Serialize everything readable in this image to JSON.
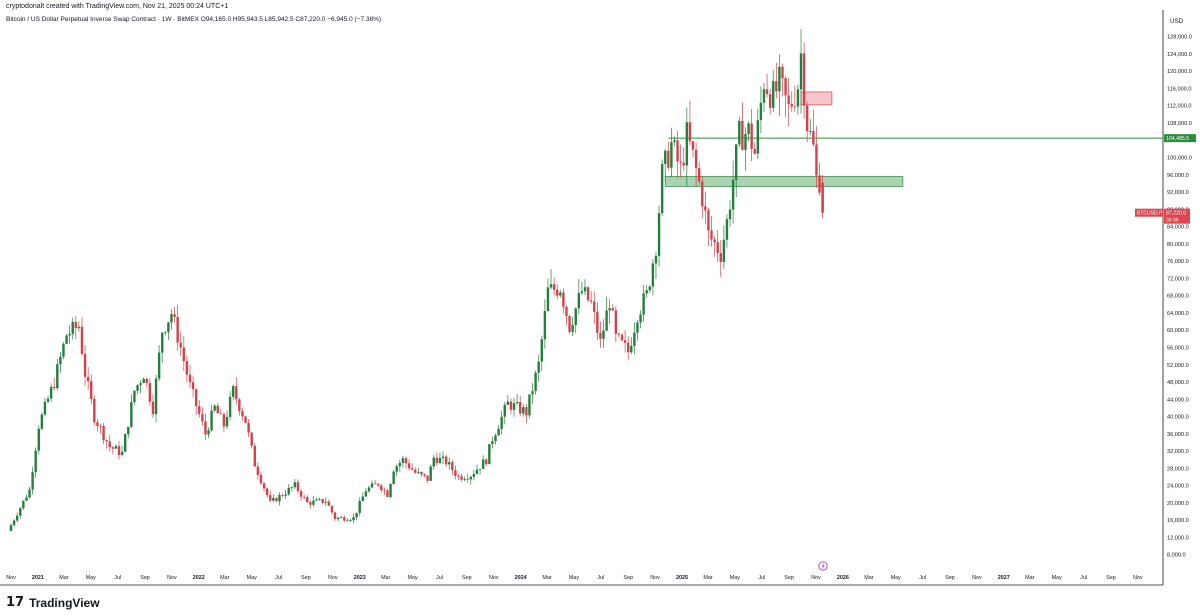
{
  "header": {
    "created_line": "cryptodonalt created with TradingView.com, Nov 21, 2025 00:24 UTC+1",
    "symbol_line": "Bitcoin / US Dollar Perpetual Inverse Swap Contract · 1W · BitMEX  O94,165.0  H95,943.5  L85,942.5  C87,220.0  −6,945.0 (−7.38%)"
  },
  "brand": {
    "logo_mark": "17",
    "logo_text": "TradingView"
  },
  "colors": {
    "up": "#22803c",
    "down": "#d64048",
    "resistance_fill": "#f7c6cb",
    "resistance_stroke": "#e05560",
    "support_fill": "#a9d3b1",
    "support_stroke": "#3f8f52",
    "level_line": "#2e8b3c",
    "axis_text": "#131722"
  },
  "icons": {
    "lightning": "lightning-icon"
  },
  "chart_data": {
    "type": "candlestick",
    "title": "Bitcoin / US Dollar Perpetual Inverse Swap Contract · 1W · BitMEX",
    "currency": "USD",
    "ylim": [
      4000,
      130000
    ],
    "y_ticks": [
      "128,000.0",
      "124,000.0",
      "120,000.0",
      "116,000.0",
      "112,000.0",
      "108,000.0",
      "100,000.0",
      "96,000.0",
      "92,000.0",
      "88,000.0",
      "84,000.0",
      "80,000.0",
      "76,000.0",
      "72,000.0",
      "68,000.0",
      "64,000.0",
      "60,000.0",
      "56,000.0",
      "52,000.0",
      "48,000.0",
      "44,000.0",
      "40,000.0",
      "36,000.0",
      "32,000.0",
      "28,000.0",
      "24,000.0",
      "20,000.0",
      "16,000.0",
      "12,000.0",
      "8,000.0"
    ],
    "x_ticks": [
      "Nov",
      "2021",
      "Mar",
      "May",
      "Jul",
      "Sep",
      "Nov",
      "2022",
      "Mar",
      "May",
      "Jul",
      "Sep",
      "Nov",
      "2023",
      "Mar",
      "May",
      "Jul",
      "Sep",
      "Nov",
      "2024",
      "Mar",
      "May",
      "Jul",
      "Sep",
      "Nov",
      "2025",
      "Mar",
      "May",
      "Jul",
      "Sep",
      "Nov",
      "2026",
      "Mar",
      "May",
      "Jul",
      "Sep",
      "Nov",
      "2027",
      "Mar",
      "May",
      "Jul",
      "Sep",
      "Nov"
    ],
    "price_label": {
      "symbol": "BTCUSD.P",
      "value": "87,220.0",
      "countdown": "3d 9h"
    },
    "level_label": "104,485.5",
    "series": [
      {
        "name": "BTCUSD.P",
        "anchors": [
          [
            "2020-11-01",
            13500
          ],
          [
            "2020-12-20",
            23000
          ],
          [
            "2021-01-10",
            38000
          ],
          [
            "2021-02-14",
            48000
          ],
          [
            "2021-03-14",
            59000
          ],
          [
            "2021-04-11",
            61000
          ],
          [
            "2021-04-25",
            50000
          ],
          [
            "2021-05-16",
            40000
          ],
          [
            "2021-06-20",
            33000
          ],
          [
            "2021-07-18",
            31500
          ],
          [
            "2021-08-15",
            46000
          ],
          [
            "2021-09-05",
            50000
          ],
          [
            "2021-09-26",
            42000
          ],
          [
            "2021-10-17",
            60000
          ],
          [
            "2021-11-07",
            64000
          ],
          [
            "2021-11-28",
            56000
          ],
          [
            "2021-12-19",
            47000
          ],
          [
            "2022-01-23",
            36000
          ],
          [
            "2022-02-13",
            42000
          ],
          [
            "2022-03-06",
            38000
          ],
          [
            "2022-03-27",
            46000
          ],
          [
            "2022-04-24",
            39000
          ],
          [
            "2022-05-15",
            29000
          ],
          [
            "2022-06-19",
            20000
          ],
          [
            "2022-07-24",
            22500
          ],
          [
            "2022-08-14",
            24000
          ],
          [
            "2022-09-11",
            20000
          ],
          [
            "2022-10-23",
            20500
          ],
          [
            "2022-11-13",
            16500
          ],
          [
            "2022-12-25",
            16500
          ],
          [
            "2023-01-22",
            23000
          ],
          [
            "2023-02-19",
            24500
          ],
          [
            "2023-03-12",
            22000
          ],
          [
            "2023-03-26",
            28000
          ],
          [
            "2023-04-16",
            30000
          ],
          [
            "2023-05-14",
            27000
          ],
          [
            "2023-06-11",
            25500
          ],
          [
            "2023-06-25",
            30500
          ],
          [
            "2023-07-23",
            29500
          ],
          [
            "2023-08-20",
            26000
          ],
          [
            "2023-09-17",
            26500
          ],
          [
            "2023-10-22",
            30000
          ],
          [
            "2023-11-05",
            35000
          ],
          [
            "2023-12-10",
            43000
          ],
          [
            "2024-01-21",
            41000
          ],
          [
            "2024-02-18",
            52000
          ],
          [
            "2024-03-10",
            69000
          ],
          [
            "2024-04-07",
            70000
          ],
          [
            "2024-04-28",
            61000
          ],
          [
            "2024-05-26",
            69000
          ],
          [
            "2024-06-16",
            66000
          ],
          [
            "2024-07-07",
            57000
          ],
          [
            "2024-07-28",
            67000
          ],
          [
            "2024-08-11",
            58000
          ],
          [
            "2024-09-08",
            55000
          ],
          [
            "2024-09-29",
            64000
          ],
          [
            "2024-10-20",
            68000
          ],
          [
            "2024-11-10",
            80000
          ],
          [
            "2024-11-24",
            96000
          ],
          [
            "2024-12-15",
            103000
          ],
          [
            "2025-01-05",
            97000
          ],
          [
            "2025-01-19",
            105000
          ],
          [
            "2025-02-02",
            100000
          ],
          [
            "2025-02-23",
            91000
          ],
          [
            "2025-03-09",
            82000
          ],
          [
            "2025-04-06",
            78000
          ],
          [
            "2025-04-20",
            85000
          ],
          [
            "2025-05-04",
            95000
          ],
          [
            "2025-05-18",
            105000
          ],
          [
            "2025-06-08",
            106000
          ],
          [
            "2025-06-22",
            101000
          ],
          [
            "2025-07-13",
            118000
          ],
          [
            "2025-08-03",
            114000
          ],
          [
            "2025-08-17",
            117000
          ],
          [
            "2025-09-07",
            111000
          ],
          [
            "2025-09-28",
            117000
          ],
          [
            "2025-10-05",
            124000
          ],
          [
            "2025-10-19",
            108000
          ],
          [
            "2025-11-02",
            102000
          ],
          [
            "2025-11-09",
            95000
          ]
        ],
        "last": {
          "date": "2025-11-16",
          "open": 94165.0,
          "high": 95943.5,
          "low": 85942.5,
          "close": 87220.0,
          "change": -6945.0,
          "change_pct": -7.38
        }
      }
    ],
    "zones": [
      {
        "name": "resistance",
        "from": "2025-09-28",
        "to": "2025-12-07",
        "low": 112200,
        "high": 115200,
        "color": "#f7c6cb"
      },
      {
        "name": "support",
        "from": "2024-11-24",
        "to": "2026-05-17",
        "low": 93300,
        "high": 95600,
        "color": "#a9d3b1"
      }
    ],
    "levels": [
      {
        "from": "2024-12-01",
        "value": 104485.5
      }
    ],
    "grid": false
  }
}
